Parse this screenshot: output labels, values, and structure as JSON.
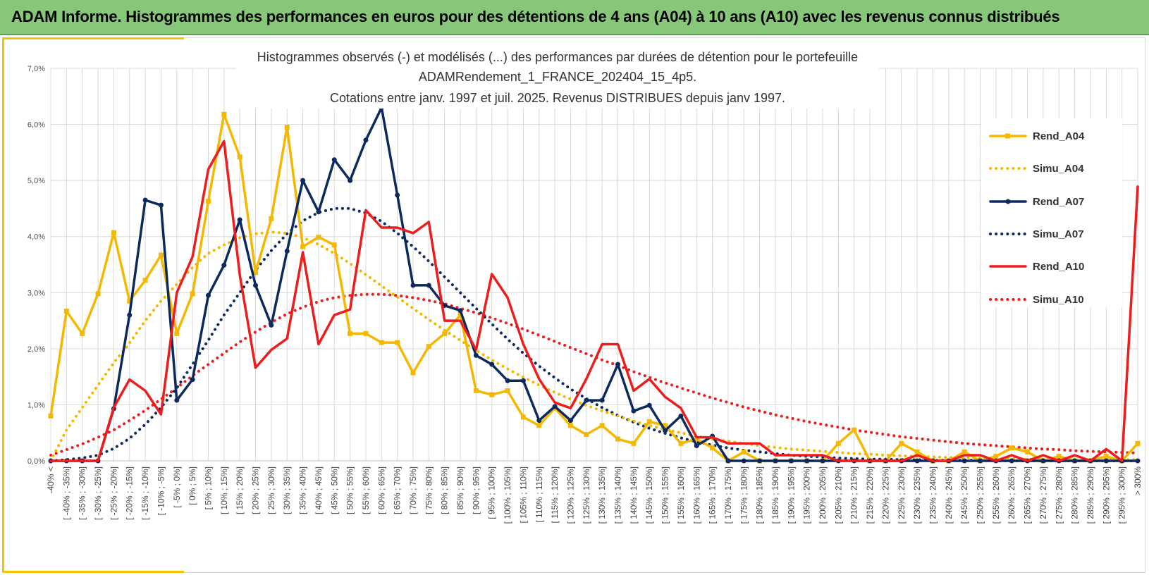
{
  "header": {
    "title": "ADAM Informe. Histogrammes des performances en euros pour des détentions de 4 ans (A04) à 10 ans (A10) avec les revenus connus distribués"
  },
  "colors": {
    "banner": "#86c77a",
    "accent": "#f5c400",
    "A04": "#f5b800",
    "A07": "#0d2a5e",
    "A10": "#ee1c1c",
    "grid": "#d9d9d9"
  },
  "chart_data": {
    "type": "line",
    "title_lines": [
      "Histogrammes observés (-) et modélisés (...) des performances par durées de détention pour  le portefeuille",
      "ADAMRendement_1_FRANCE_202404_15_4p5.",
      "Cotations entre janv. 1997 et juil. 2025. Revenus DISTRIBUES depuis janv 1997."
    ],
    "ylim": [
      0,
      7
    ],
    "y_ticks": [
      "0,0%",
      "1,0%",
      "2,0%",
      "3,0%",
      "4,0%",
      "5,0%",
      "6,0%",
      "7,0%"
    ],
    "grid": true,
    "legend_position": "right",
    "categories": [
      "-40% <",
      "[ -40% ; -35%]",
      "[ -35% ; -30%]",
      "[ -30% ; -25%]",
      "[ -25% ; -20%]",
      "[ -20% ; -15%]",
      "[ -15% ; -10%]",
      "[ -10% ; -5%]",
      "[ -5% ; 0%]",
      "[ 0% ; 5%]",
      "[ 5% ; 10%]",
      "[ 10% ; 15%]",
      "[ 15% ; 20%]",
      "[ 20% ; 25%]",
      "[ 25% ; 30%]",
      "[ 30% ; 35%]",
      "[ 35% ; 40%]",
      "[ 40% ; 45%]",
      "[ 45% ; 50%]",
      "[ 50% ; 55%]",
      "[ 55% ; 60%]",
      "[ 60% ; 65%]",
      "[ 65% ; 70%]",
      "[ 70% ; 75%]",
      "[ 75% ; 80%]",
      "[ 80% ; 85%]",
      "[ 85% ; 90%]",
      "[ 90% ; 95%]",
      "[ 95% ; 100%]",
      "[ 100% ; 105%]",
      "[ 105% ; 110%]",
      "[ 110% ; 115%]",
      "[ 115% ; 120%]",
      "[ 120% ; 125%]",
      "[ 125% ; 130%]",
      "[ 130% ; 135%]",
      "[ 135% ; 140%]",
      "[ 140% ; 145%]",
      "[ 145% ; 150%]",
      "[ 150% ; 155%]",
      "[ 155% ; 160%]",
      "[ 160% ; 165%]",
      "[ 165% ; 170%]",
      "[ 170% ; 175%]",
      "[ 175% ; 180%]",
      "[ 180% ; 185%]",
      "[ 185% ; 190%]",
      "[ 190% ; 195%]",
      "[ 195% ; 200%]",
      "[ 200% ; 205%]",
      "[ 205% ; 210%]",
      "[ 210% ; 215%]",
      "[ 215% ; 220%]",
      "[ 220% ; 225%]",
      "[ 225% ; 230%]",
      "[ 230% ; 235%]",
      "[ 235% ; 240%]",
      "[ 240% ; 245%]",
      "[ 245% ; 250%]",
      "[ 250% ; 255%]",
      "[ 255% ; 260%]",
      "[ 260% ; 265%]",
      "[ 265% ; 270%]",
      "[ 270% ; 275%]",
      "[ 275% ; 280%]",
      "[ 280% ; 285%]",
      "[ 285% ; 290%]",
      "[ 290% ; 295%]",
      "[ 295% ; 300%]",
      "> 300%"
    ],
    "series": [
      {
        "name": "Rend_A04",
        "style": "solid",
        "marker": "square",
        "color": "#f5b800",
        "values": [
          0.8,
          2.67,
          2.27,
          2.98,
          4.07,
          2.85,
          3.22,
          3.67,
          2.27,
          2.98,
          4.63,
          6.18,
          5.42,
          3.36,
          4.32,
          5.95,
          3.82,
          3.99,
          3.85,
          2.27,
          2.27,
          2.11,
          2.11,
          1.57,
          2.04,
          2.27,
          2.6,
          1.25,
          1.18,
          1.25,
          0.78,
          0.63,
          0.94,
          0.63,
          0.47,
          0.63,
          0.39,
          0.31,
          0.7,
          0.63,
          0.31,
          0.39,
          0.23,
          0.0,
          0.16,
          0.0,
          0.0,
          0.0,
          0.0,
          0.0,
          0.31,
          0.55,
          0.0,
          0.0,
          0.31,
          0.16,
          0.0,
          0.0,
          0.16,
          0.0,
          0.08,
          0.23,
          0.16,
          0.0,
          0.08,
          0.0,
          0.0,
          0.08,
          0.0,
          0.31
        ]
      },
      {
        "name": "Simu_A04",
        "style": "dotted",
        "color": "#f5b800",
        "values": [
          0.0,
          0.55,
          0.95,
          1.35,
          1.75,
          2.1,
          2.5,
          2.85,
          3.15,
          3.45,
          3.7,
          3.85,
          3.98,
          4.05,
          4.08,
          4.06,
          3.98,
          3.86,
          3.7,
          3.52,
          3.32,
          3.12,
          2.92,
          2.72,
          2.52,
          2.33,
          2.15,
          1.97,
          1.8,
          1.64,
          1.49,
          1.35,
          1.22,
          1.1,
          0.99,
          0.89,
          0.8,
          0.71,
          0.63,
          0.56,
          0.5,
          0.44,
          0.39,
          0.35,
          0.31,
          0.27,
          0.24,
          0.21,
          0.19,
          0.17,
          0.15,
          0.13,
          0.12,
          0.1,
          0.09,
          0.08,
          0.07,
          0.06,
          0.06,
          0.05,
          0.04,
          0.04,
          0.03,
          0.03,
          0.03,
          0.02,
          0.02,
          0.02,
          0.02,
          0.02
        ]
      },
      {
        "name": "Rend_A07",
        "style": "solid",
        "marker": "circle",
        "color": "#0d2a5e",
        "values": [
          0.0,
          0.0,
          0.0,
          0.0,
          0.93,
          2.6,
          4.65,
          4.56,
          1.08,
          1.45,
          2.95,
          3.49,
          4.3,
          3.13,
          2.42,
          3.74,
          5.0,
          4.44,
          5.37,
          5.0,
          5.72,
          6.3,
          4.74,
          3.13,
          3.13,
          2.77,
          2.68,
          1.88,
          1.72,
          1.43,
          1.43,
          0.72,
          0.97,
          0.72,
          1.08,
          1.08,
          1.72,
          0.89,
          0.99,
          0.54,
          0.8,
          0.27,
          0.44,
          0.0,
          0.0,
          0.0,
          0.0,
          0.0,
          0.0,
          0.0,
          0.0,
          0.0,
          0.0,
          0.0,
          0.0,
          0.0,
          0.0,
          0.0,
          0.0,
          0.0,
          0.0,
          0.0,
          0.0,
          0.0,
          0.0,
          0.0,
          0.0,
          0.0,
          0.0,
          0.0
        ]
      },
      {
        "name": "Simu_A07",
        "style": "dotted",
        "color": "#0d2a5e",
        "values": [
          0.0,
          0.02,
          0.05,
          0.1,
          0.22,
          0.4,
          0.65,
          0.95,
          1.3,
          1.72,
          2.15,
          2.6,
          3.0,
          3.4,
          3.75,
          4.05,
          4.28,
          4.43,
          4.5,
          4.5,
          4.42,
          4.27,
          4.06,
          3.82,
          3.56,
          3.28,
          3.0,
          2.72,
          2.44,
          2.17,
          1.92,
          1.69,
          1.48,
          1.28,
          1.11,
          0.95,
          0.81,
          0.69,
          0.58,
          0.49,
          0.41,
          0.34,
          0.28,
          0.23,
          0.19,
          0.16,
          0.13,
          0.1,
          0.08,
          0.07,
          0.05,
          0.04,
          0.03,
          0.03,
          0.02,
          0.02,
          0.01,
          0.01,
          0.01,
          0.01,
          0.0,
          0.0,
          0.0,
          0.0,
          0.0,
          0.0,
          0.0,
          0.0,
          0.0,
          0.0
        ]
      },
      {
        "name": "Rend_A10",
        "style": "solid",
        "marker": "none",
        "color": "#ee1c1c",
        "values": [
          0.0,
          0.0,
          0.0,
          0.0,
          0.95,
          1.45,
          1.25,
          0.83,
          3.0,
          3.64,
          5.2,
          5.7,
          3.31,
          1.66,
          1.98,
          2.18,
          3.72,
          2.08,
          2.6,
          2.7,
          4.47,
          4.16,
          4.16,
          4.06,
          4.26,
          2.5,
          2.5,
          1.98,
          3.33,
          2.91,
          2.08,
          1.46,
          1.04,
          0.94,
          1.46,
          2.08,
          2.08,
          1.25,
          1.46,
          1.14,
          0.94,
          0.42,
          0.42,
          0.31,
          0.31,
          0.31,
          0.1,
          0.1,
          0.1,
          0.1,
          0.0,
          0.0,
          0.0,
          0.0,
          0.0,
          0.1,
          0.0,
          0.0,
          0.1,
          0.1,
          0.0,
          0.1,
          0.0,
          0.1,
          0.0,
          0.1,
          0.0,
          0.21,
          0.0,
          4.89
        ]
      },
      {
        "name": "Simu_A10",
        "style": "dotted",
        "color": "#ee1c1c",
        "values": [
          0.1,
          0.2,
          0.3,
          0.42,
          0.55,
          0.72,
          0.9,
          1.1,
          1.3,
          1.52,
          1.72,
          1.92,
          2.12,
          2.3,
          2.47,
          2.62,
          2.74,
          2.84,
          2.91,
          2.95,
          2.97,
          2.97,
          2.95,
          2.91,
          2.86,
          2.8,
          2.72,
          2.64,
          2.55,
          2.45,
          2.35,
          2.24,
          2.13,
          2.02,
          1.91,
          1.8,
          1.7,
          1.59,
          1.49,
          1.39,
          1.3,
          1.21,
          1.12,
          1.04,
          0.96,
          0.89,
          0.82,
          0.76,
          0.7,
          0.65,
          0.6,
          0.55,
          0.51,
          0.47,
          0.43,
          0.4,
          0.37,
          0.34,
          0.31,
          0.29,
          0.27,
          0.25,
          0.23,
          0.21,
          0.2,
          0.18,
          0.17,
          0.16,
          0.15,
          0.14
        ]
      }
    ]
  }
}
